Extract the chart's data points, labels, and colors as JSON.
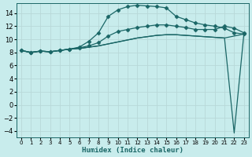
{
  "xlabel": "Humidex (Indice chaleur)",
  "bg_color": "#c8ecec",
  "grid_color": "#b8d8d8",
  "line_color": "#1a6666",
  "xlim": [
    -0.5,
    23.5
  ],
  "ylim": [
    -5.0,
    15.5
  ],
  "yticks": [
    -4,
    -2,
    0,
    2,
    4,
    6,
    8,
    10,
    12,
    14
  ],
  "xticks": [
    0,
    1,
    2,
    3,
    4,
    5,
    6,
    7,
    8,
    9,
    10,
    11,
    12,
    13,
    14,
    15,
    16,
    17,
    18,
    19,
    20,
    21,
    22,
    23
  ],
  "series": [
    {
      "x": [
        0,
        1,
        2,
        3,
        4,
        5,
        6,
        7,
        8,
        9,
        10,
        11,
        12,
        13,
        14,
        15,
        16,
        17,
        18,
        19,
        20,
        21,
        22,
        23
      ],
      "y": [
        8.3,
        8.0,
        8.2,
        8.1,
        8.3,
        8.5,
        8.8,
        9.7,
        11.0,
        13.5,
        14.5,
        15.0,
        15.2,
        15.1,
        15.0,
        14.8,
        13.5,
        13.0,
        12.5,
        12.2,
        12.0,
        11.7,
        11.0,
        10.8
      ],
      "marker": "D",
      "markersize": 2.5,
      "lw": 0.9
    },
    {
      "x": [
        0,
        1,
        2,
        3,
        4,
        5,
        6,
        7,
        8,
        9,
        10,
        11,
        12,
        13,
        14,
        15,
        16,
        17,
        18,
        19,
        20,
        21,
        22,
        23
      ],
      "y": [
        8.3,
        8.0,
        8.2,
        8.1,
        8.3,
        8.5,
        8.7,
        9.0,
        9.5,
        10.5,
        11.2,
        11.5,
        11.8,
        12.0,
        12.2,
        12.2,
        12.0,
        11.8,
        11.5,
        11.5,
        11.5,
        12.0,
        11.7,
        11.0
      ],
      "marker": "D",
      "markersize": 2.5,
      "lw": 0.9
    },
    {
      "x": [
        0,
        1,
        2,
        3,
        4,
        5,
        6,
        7,
        8,
        9,
        10,
        11,
        12,
        13,
        14,
        15,
        16,
        17,
        18,
        19,
        20,
        21,
        22,
        23
      ],
      "y": [
        8.3,
        8.0,
        8.2,
        8.1,
        8.3,
        8.5,
        8.6,
        8.8,
        9.0,
        9.3,
        9.6,
        9.9,
        10.2,
        10.4,
        10.6,
        10.7,
        10.7,
        10.6,
        10.5,
        10.4,
        10.3,
        10.2,
        10.5,
        10.8
      ],
      "marker": null,
      "markersize": 0,
      "lw": 0.9
    },
    {
      "x": [
        0,
        1,
        2,
        3,
        4,
        5,
        6,
        7,
        8,
        9,
        10,
        11,
        12,
        13,
        14,
        15,
        16,
        17,
        18,
        19,
        20,
        21,
        22,
        23
      ],
      "y": [
        8.3,
        8.0,
        8.2,
        8.1,
        8.3,
        8.5,
        8.6,
        8.8,
        9.0,
        9.3,
        9.6,
        9.9,
        10.2,
        10.4,
        10.6,
        10.7,
        10.7,
        10.6,
        10.5,
        10.4,
        10.3,
        10.2,
        -4.3,
        10.8
      ],
      "marker": null,
      "markersize": 0,
      "lw": 0.9
    }
  ]
}
